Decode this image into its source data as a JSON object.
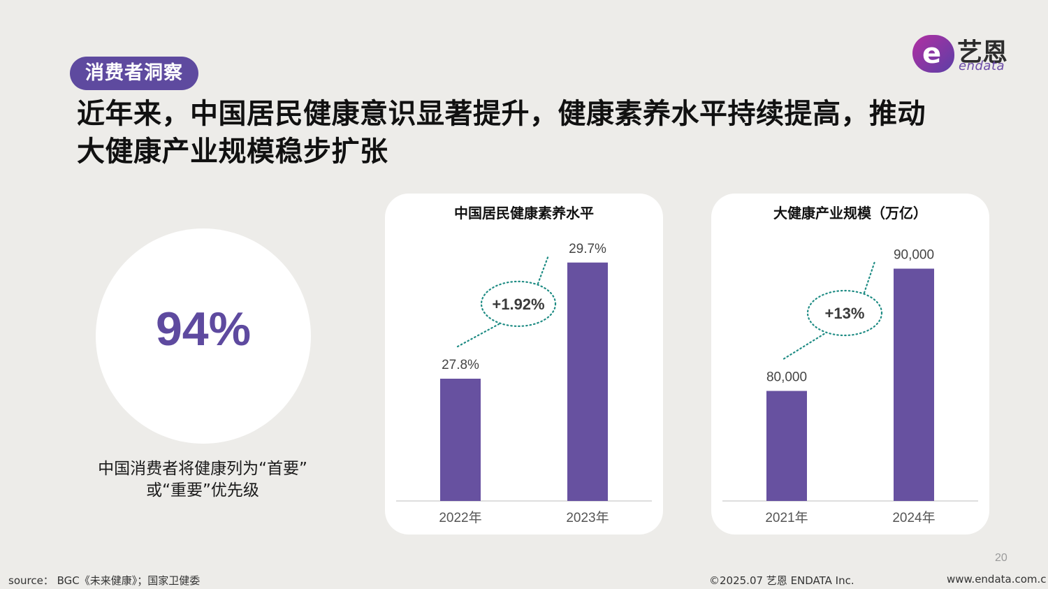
{
  "tag": "消费者洞察",
  "logo": {
    "mark": "e",
    "cn": "艺恩",
    "en": "endata"
  },
  "headline_line1": "近年来，中国居民健康意识显著提升，健康素养水平持续提高，推动",
  "headline_line2": "大健康产业规模稳步扩张",
  "stat": {
    "value": "94%",
    "caption_line1": "中国消费者将健康列为“首要”",
    "caption_line2": "或“重要”优先级"
  },
  "colors": {
    "bar": "#6751A0",
    "accent": "#5E4A9F",
    "dotted": "#1F8C84",
    "background": "#EDECE9"
  },
  "chart_data": [
    {
      "type": "bar",
      "title": "中国居民健康素养水平",
      "categories": [
        "2022年",
        "2023年"
      ],
      "values": [
        27.8,
        29.7
      ],
      "value_labels": [
        "27.8%",
        "29.7%"
      ],
      "annotation": "+1.92%",
      "ylim": [
        25.8,
        29.8
      ],
      "grid": false
    },
    {
      "type": "bar",
      "title": "大健康产业规模（万亿）",
      "categories": [
        "2021年",
        "2024年"
      ],
      "values": [
        80000,
        90000
      ],
      "value_labels": [
        "80,000",
        "90,000"
      ],
      "annotation": "+13%",
      "ylim": [
        71000,
        91000
      ],
      "grid": false
    }
  ],
  "page_number": "20",
  "footer": {
    "source": "source： BGC《未来健康》；国家卫健委",
    "copyright": "©2025.07  艺恩 ENDATA Inc.",
    "url": "www.endata.com.c"
  }
}
